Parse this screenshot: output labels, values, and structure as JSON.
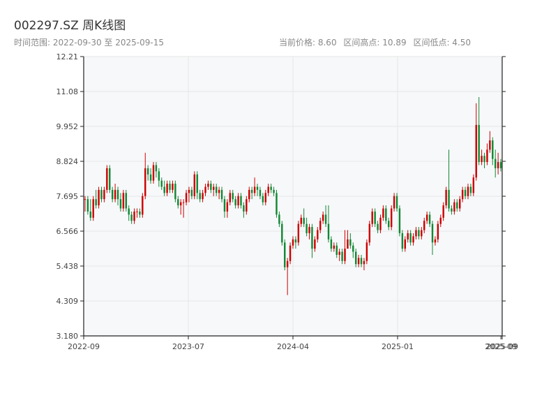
{
  "header": {
    "title": "002297.SZ 周K线图",
    "range_label": "时间范围: 2022-09-30 至 2025-09-15",
    "current_price": "当前价格: 8.60",
    "range_high": "区间高点: 10.89",
    "range_low": "区间低点: 4.50"
  },
  "colors": {
    "up": "#cc0000",
    "down": "#118833",
    "grid": "#e6e6e6",
    "plot_bg": "#f7f8fa",
    "axis": "#222222"
  },
  "chart_data": {
    "type": "candlestick",
    "title": "002297.SZ 周K线图",
    "xlabel": "",
    "ylabel": "",
    "ylim": [
      3.18,
      12.21
    ],
    "y_ticks": [
      3.18,
      4.309,
      5.438,
      6.566,
      7.695,
      8.824,
      9.952,
      11.08,
      12.21
    ],
    "y_tick_labels": [
      "3.180",
      "4.309",
      "5.438",
      "6.566",
      "7.695",
      "8.824",
      "9.952",
      "11.08",
      "12.21"
    ],
    "x_ticks": [
      {
        "label": "2022-09",
        "pos": 0.0
      },
      {
        "label": "2023-07",
        "pos": 0.25
      },
      {
        "label": "2024-04",
        "pos": 0.5
      },
      {
        "label": "2025-01",
        "pos": 0.75
      },
      {
        "label": "2025-09",
        "pos": 0.997
      },
      {
        "label": "2025-09",
        "pos": 1.0
      }
    ],
    "candles": [
      [
        7.6,
        7.6,
        7.7,
        7.2
      ],
      [
        7.6,
        7.2,
        7.7,
        7.1
      ],
      [
        7.2,
        7.0,
        7.6,
        6.9
      ],
      [
        7.0,
        7.6,
        7.7,
        6.9
      ],
      [
        7.6,
        7.4,
        7.9,
        7.3
      ],
      [
        7.4,
        7.9,
        8.0,
        7.3
      ],
      [
        7.9,
        7.6,
        8.0,
        7.5
      ],
      [
        7.6,
        7.9,
        8.0,
        7.5
      ],
      [
        7.9,
        8.6,
        8.7,
        7.8
      ],
      [
        8.6,
        7.9,
        8.7,
        7.8
      ],
      [
        7.9,
        7.6,
        8.0,
        7.5
      ],
      [
        7.6,
        7.9,
        8.1,
        7.5
      ],
      [
        7.9,
        7.6,
        8.0,
        7.4
      ],
      [
        7.6,
        7.3,
        7.8,
        7.2
      ],
      [
        7.3,
        7.8,
        7.9,
        7.2
      ],
      [
        7.8,
        7.3,
        7.9,
        7.2
      ],
      [
        7.3,
        7.1,
        7.4,
        6.9
      ],
      [
        7.1,
        6.9,
        7.2,
        6.8
      ],
      [
        6.9,
        7.2,
        7.3,
        6.8
      ],
      [
        7.2,
        7.2,
        7.3,
        7.0
      ],
      [
        7.2,
        7.1,
        7.3,
        7.0
      ],
      [
        7.1,
        7.7,
        7.8,
        7.0
      ],
      [
        7.7,
        8.6,
        9.1,
        7.6
      ],
      [
        8.6,
        8.4,
        8.7,
        8.2
      ],
      [
        8.4,
        8.2,
        8.6,
        8.1
      ],
      [
        8.2,
        8.7,
        8.8,
        8.1
      ],
      [
        8.7,
        8.5,
        8.8,
        8.3
      ],
      [
        8.5,
        8.2,
        8.6,
        8.0
      ],
      [
        8.2,
        8.0,
        8.3,
        7.9
      ],
      [
        8.0,
        7.8,
        8.2,
        7.7
      ],
      [
        7.8,
        8.1,
        8.2,
        7.7
      ],
      [
        8.1,
        7.9,
        8.2,
        7.8
      ],
      [
        7.9,
        8.1,
        8.2,
        7.8
      ],
      [
        8.1,
        7.6,
        8.2,
        7.5
      ],
      [
        7.6,
        7.4,
        7.7,
        7.3
      ],
      [
        7.4,
        7.5,
        7.6,
        7.1
      ],
      [
        7.5,
        7.5,
        7.6,
        7.0
      ],
      [
        7.5,
        7.8,
        7.9,
        7.4
      ],
      [
        7.8,
        7.9,
        8.0,
        7.5
      ],
      [
        7.9,
        7.7,
        8.0,
        7.6
      ],
      [
        7.7,
        8.4,
        8.5,
        7.6
      ],
      [
        8.4,
        7.8,
        8.5,
        7.6
      ],
      [
        7.8,
        7.6,
        7.9,
        7.5
      ],
      [
        7.6,
        7.8,
        7.9,
        7.5
      ],
      [
        7.8,
        8.0,
        8.1,
        7.7
      ],
      [
        8.0,
        8.1,
        8.2,
        7.9
      ],
      [
        8.1,
        7.9,
        8.2,
        7.8
      ],
      [
        7.9,
        8.0,
        8.1,
        7.7
      ],
      [
        8.0,
        7.8,
        8.1,
        7.7
      ],
      [
        7.8,
        7.9,
        8.0,
        7.6
      ],
      [
        7.9,
        7.6,
        8.0,
        7.5
      ],
      [
        7.6,
        7.2,
        7.7,
        7.0
      ],
      [
        7.2,
        7.5,
        7.6,
        7.0
      ],
      [
        7.5,
        7.8,
        7.9,
        7.4
      ],
      [
        7.8,
        7.6,
        7.9,
        7.5
      ],
      [
        7.6,
        7.4,
        7.7,
        7.3
      ],
      [
        7.4,
        7.7,
        7.8,
        7.3
      ],
      [
        7.7,
        7.4,
        7.8,
        7.3
      ],
      [
        7.4,
        7.2,
        7.5,
        7.0
      ],
      [
        7.2,
        7.6,
        7.7,
        7.1
      ],
      [
        7.6,
        7.9,
        8.0,
        7.5
      ],
      [
        7.9,
        7.8,
        8.0,
        7.6
      ],
      [
        7.8,
        8.0,
        8.3,
        7.7
      ],
      [
        8.0,
        7.9,
        8.1,
        7.7
      ],
      [
        7.9,
        7.7,
        8.0,
        7.6
      ],
      [
        7.7,
        7.5,
        7.8,
        7.4
      ],
      [
        7.5,
        7.8,
        7.9,
        7.4
      ],
      [
        7.8,
        8.0,
        8.1,
        7.7
      ],
      [
        8.0,
        7.9,
        8.1,
        7.8
      ],
      [
        7.9,
        7.8,
        8.0,
        7.7
      ],
      [
        7.8,
        7.1,
        7.9,
        7.0
      ],
      [
        7.1,
        6.8,
        7.2,
        6.7
      ],
      [
        6.8,
        6.2,
        6.9,
        6.1
      ],
      [
        6.2,
        5.4,
        6.3,
        5.3
      ],
      [
        5.4,
        5.6,
        5.7,
        4.5
      ],
      [
        5.6,
        6.1,
        6.2,
        5.5
      ],
      [
        6.1,
        6.3,
        6.4,
        6.0
      ],
      [
        6.3,
        6.2,
        6.4,
        6.0
      ],
      [
        6.2,
        6.8,
        6.9,
        6.1
      ],
      [
        6.8,
        7.0,
        7.1,
        6.7
      ],
      [
        7.0,
        6.8,
        7.3,
        6.7
      ],
      [
        6.8,
        6.5,
        7.0,
        6.4
      ],
      [
        6.5,
        6.7,
        6.8,
        6.3
      ],
      [
        6.7,
        6.0,
        6.8,
        5.7
      ],
      [
        6.0,
        6.3,
        6.4,
        5.9
      ],
      [
        6.3,
        6.6,
        6.7,
        6.2
      ],
      [
        6.6,
        6.9,
        7.0,
        6.5
      ],
      [
        6.9,
        7.1,
        7.2,
        6.8
      ],
      [
        7.1,
        6.8,
        7.4,
        6.7
      ],
      [
        6.8,
        6.3,
        7.4,
        6.2
      ],
      [
        6.3,
        6.0,
        6.4,
        5.9
      ],
      [
        6.0,
        6.1,
        6.2,
        5.9
      ],
      [
        6.1,
        5.8,
        6.2,
        5.7
      ],
      [
        5.8,
        5.9,
        6.0,
        5.6
      ],
      [
        5.9,
        5.6,
        6.0,
        5.5
      ],
      [
        5.6,
        6.0,
        6.6,
        5.5
      ],
      [
        6.0,
        6.3,
        6.6,
        6.1
      ],
      [
        6.3,
        6.1,
        6.5,
        6.0
      ],
      [
        6.1,
        5.9,
        6.2,
        5.7
      ],
      [
        5.9,
        5.5,
        6.0,
        5.4
      ],
      [
        5.5,
        5.7,
        5.8,
        5.4
      ],
      [
        5.7,
        5.5,
        5.8,
        5.4
      ],
      [
        5.5,
        5.6,
        5.7,
        5.3
      ],
      [
        5.6,
        6.2,
        6.3,
        5.5
      ],
      [
        6.2,
        6.8,
        6.9,
        6.1
      ],
      [
        6.8,
        7.2,
        7.3,
        6.7
      ],
      [
        7.2,
        6.8,
        7.3,
        6.7
      ],
      [
        6.8,
        6.6,
        6.9,
        6.5
      ],
      [
        6.6,
        7.0,
        7.1,
        6.5
      ],
      [
        7.0,
        7.3,
        7.4,
        6.9
      ],
      [
        7.3,
        6.9,
        7.4,
        6.8
      ],
      [
        6.9,
        6.7,
        7.0,
        6.6
      ],
      [
        6.7,
        7.3,
        7.4,
        6.6
      ],
      [
        7.3,
        7.7,
        7.8,
        7.2
      ],
      [
        7.7,
        7.3,
        7.8,
        7.2
      ],
      [
        7.3,
        6.5,
        7.4,
        6.4
      ],
      [
        6.5,
        6.0,
        6.6,
        5.9
      ],
      [
        6.0,
        6.3,
        6.4,
        5.9
      ],
      [
        6.3,
        6.5,
        6.6,
        6.2
      ],
      [
        6.5,
        6.2,
        6.6,
        6.1
      ],
      [
        6.2,
        6.4,
        6.5,
        6.1
      ],
      [
        6.4,
        6.6,
        6.7,
        6.3
      ],
      [
        6.6,
        6.4,
        6.7,
        6.3
      ],
      [
        6.4,
        6.6,
        6.7,
        6.3
      ],
      [
        6.6,
        6.9,
        7.0,
        6.5
      ],
      [
        6.9,
        7.1,
        7.2,
        6.8
      ],
      [
        7.1,
        6.8,
        7.2,
        6.7
      ],
      [
        6.8,
        6.2,
        6.9,
        5.8
      ],
      [
        6.2,
        6.3,
        6.4,
        6.1
      ],
      [
        6.3,
        6.8,
        6.9,
        6.2
      ],
      [
        6.8,
        7.0,
        7.1,
        6.7
      ],
      [
        7.0,
        7.4,
        7.5,
        6.9
      ],
      [
        7.4,
        7.9,
        8.0,
        7.3
      ],
      [
        7.9,
        7.3,
        9.2,
        7.2
      ],
      [
        7.3,
        7.2,
        7.4,
        7.1
      ],
      [
        7.2,
        7.5,
        7.6,
        7.1
      ],
      [
        7.5,
        7.3,
        7.6,
        7.2
      ],
      [
        7.3,
        7.6,
        7.7,
        7.2
      ],
      [
        7.6,
        7.9,
        8.0,
        7.5
      ],
      [
        7.9,
        7.7,
        8.0,
        7.6
      ],
      [
        7.7,
        8.0,
        8.1,
        7.6
      ],
      [
        8.0,
        7.8,
        8.1,
        7.7
      ],
      [
        7.8,
        8.3,
        8.4,
        7.7
      ],
      [
        8.3,
        10.0,
        10.7,
        8.2
      ],
      [
        10.0,
        8.8,
        10.9,
        8.7
      ],
      [
        8.8,
        9.0,
        9.2,
        8.7
      ],
      [
        9.0,
        8.8,
        9.1,
        8.6
      ],
      [
        8.8,
        9.2,
        9.4,
        8.7
      ],
      [
        9.2,
        9.5,
        9.8,
        9.1
      ],
      [
        9.5,
        8.9,
        9.6,
        8.7
      ],
      [
        8.9,
        8.6,
        9.2,
        8.3
      ],
      [
        8.6,
        8.8,
        9.1,
        8.4
      ],
      [
        8.8,
        8.6,
        8.9,
        8.5
      ]
    ]
  }
}
